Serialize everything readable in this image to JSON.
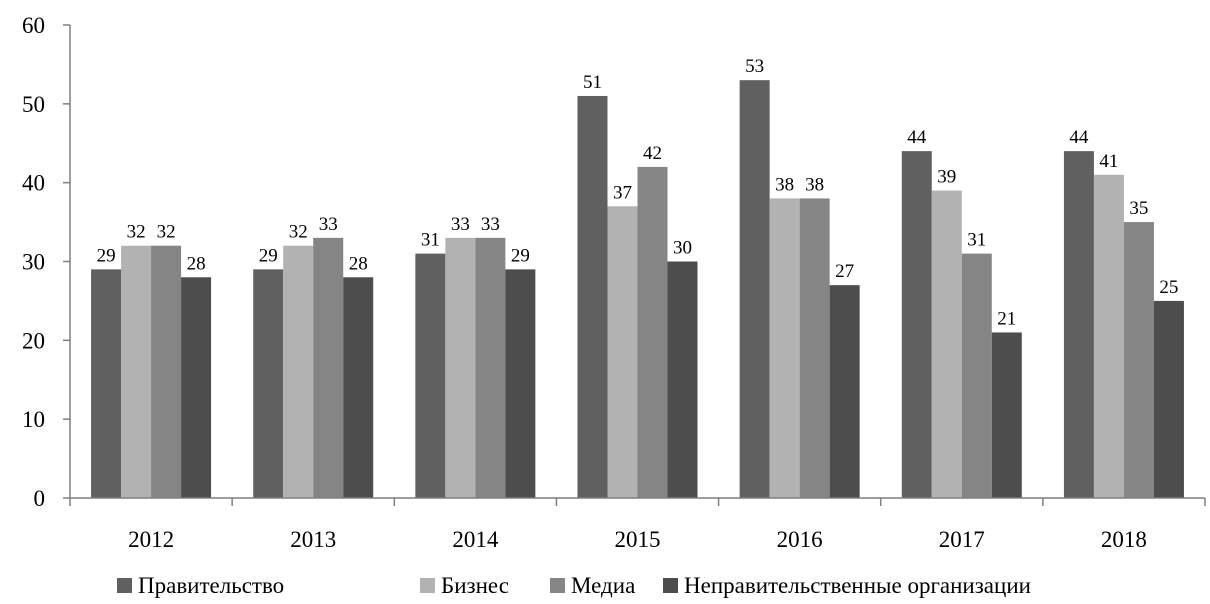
{
  "chart_data": {
    "type": "bar",
    "title": "",
    "xlabel": "",
    "ylabel": "",
    "ylim": [
      0,
      60
    ],
    "yticks": [
      0,
      10,
      20,
      30,
      40,
      50,
      60
    ],
    "grid": false,
    "legend_position": "bottom",
    "categories": [
      "2012",
      "2013",
      "2014",
      "2015",
      "2016",
      "2017",
      "2018"
    ],
    "series": [
      {
        "name": "Правительство",
        "color": "#606060",
        "values": [
          29,
          29,
          31,
          51,
          53,
          44,
          44
        ]
      },
      {
        "name": "Бизнес",
        "color": "#b2b2b2",
        "values": [
          32,
          32,
          33,
          37,
          38,
          39,
          41
        ]
      },
      {
        "name": "Медиа",
        "color": "#858585",
        "values": [
          32,
          33,
          33,
          42,
          38,
          31,
          35
        ]
      },
      {
        "name": "Неправительственные организации",
        "color": "#4d4d4d",
        "values": [
          28,
          28,
          29,
          30,
          27,
          21,
          25
        ]
      }
    ]
  }
}
